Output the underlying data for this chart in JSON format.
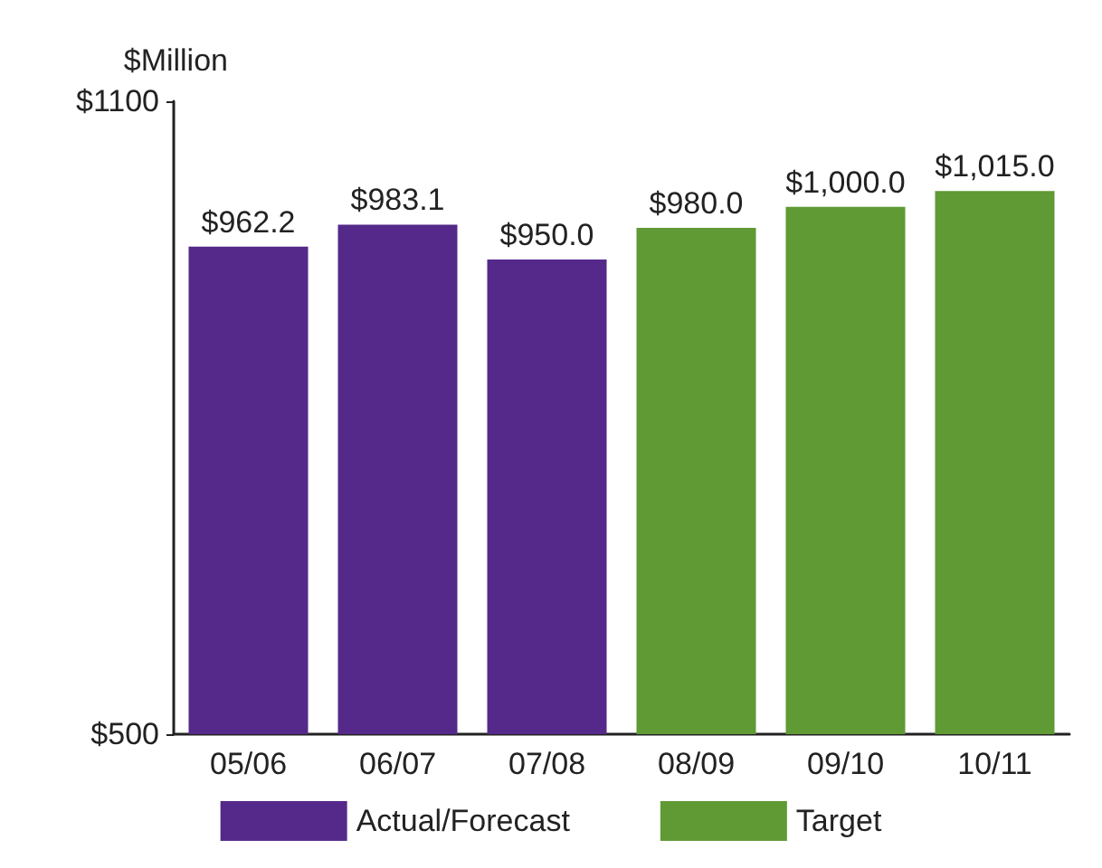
{
  "chart_data": {
    "type": "bar",
    "ylabel": "$Million",
    "categories": [
      "05/06",
      "06/07",
      "07/08",
      "08/09",
      "09/10",
      "10/11"
    ],
    "series": [
      {
        "name": "Actual/Forecast",
        "color": "#55298a",
        "values": [
          962.2,
          983.1,
          950.0,
          null,
          null,
          null
        ],
        "value_labels": [
          "$962.2",
          "$983.1",
          "$950.0",
          null,
          null,
          null
        ]
      },
      {
        "name": "Target",
        "color": "#5f9a35",
        "values": [
          null,
          null,
          null,
          980.0,
          1000.0,
          1015.0
        ],
        "value_labels": [
          null,
          null,
          null,
          "$980.0",
          "$1,000.0",
          "$1,015.0"
        ]
      }
    ],
    "ylim": [
      500,
      1100
    ],
    "yticks": [
      {
        "value": 500,
        "label": "$500"
      },
      {
        "value": 1100,
        "label": "$1100"
      }
    ],
    "grid": false,
    "legend": "bottom"
  }
}
